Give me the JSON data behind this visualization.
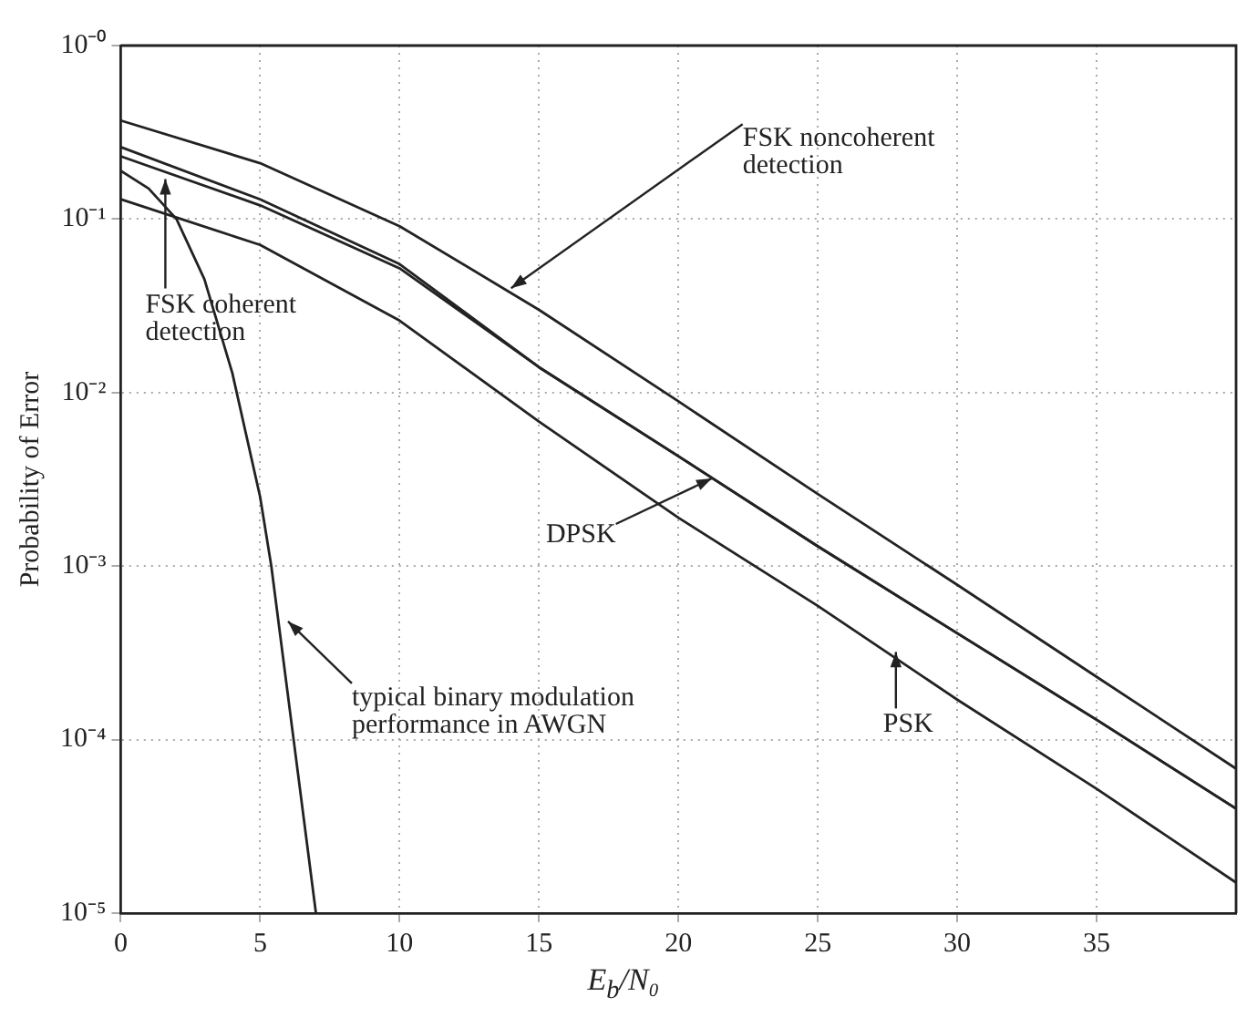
{
  "chart_data": {
    "type": "line",
    "xlabel": "E$_{b}$/N₀",
    "ylabel": "Probability of Error",
    "xlim": [
      0,
      40
    ],
    "xticks": [
      0,
      5,
      10,
      15,
      20,
      25,
      30,
      35
    ],
    "ylim": [
      1e-05,
      1
    ],
    "yticks": [
      {
        "value": 1,
        "label": "10⁻⁰"
      },
      {
        "value": 0.1,
        "label": "10⁻¹"
      },
      {
        "value": 0.01,
        "label": "10⁻²"
      },
      {
        "value": 0.001,
        "label": "10⁻³"
      },
      {
        "value": 0.0001,
        "label": "10⁻⁴"
      },
      {
        "value": 1e-05,
        "label": "10⁻⁵"
      }
    ],
    "log": "y",
    "grid": true,
    "legend": false,
    "marker": "none",
    "line_style": "solid",
    "series": [
      {
        "color": "#222222",
        "x": [
          0,
          5,
          10,
          15,
          20,
          25,
          30,
          35,
          40
        ],
        "values": [
          0.37,
          0.21,
          0.091,
          0.03,
          0.0089,
          0.0026,
          0.00078,
          0.00023,
          6.8e-05
        ]
      },
      {
        "color": "#222222",
        "x": [
          0,
          5,
          10,
          15,
          20,
          25,
          30,
          35,
          40
        ],
        "values": [
          0.26,
          0.13,
          0.055,
          0.014,
          0.0043,
          0.0013,
          0.00041,
          0.00013,
          4e-05
        ]
      },
      {
        "color": "#222222",
        "x": [
          0,
          5,
          10,
          15,
          20,
          25,
          30,
          35,
          40
        ],
        "values": [
          0.23,
          0.12,
          0.052,
          0.014,
          0.0043,
          0.0013,
          0.00041,
          0.00013,
          4e-05
        ]
      },
      {
        "color": "#222222",
        "x": [
          0,
          5,
          10,
          15,
          20,
          25,
          30,
          35,
          40
        ],
        "values": [
          0.13,
          0.071,
          0.026,
          0.0068,
          0.0019,
          0.00059,
          0.00017,
          5.2e-05,
          1.5e-05
        ]
      },
      {
        "color": "#222222",
        "x": [
          0,
          1,
          2,
          3,
          4,
          5,
          5.4,
          6.2,
          7
        ],
        "values": [
          0.19,
          0.15,
          0.1,
          0.045,
          0.013,
          0.0025,
          0.001,
          0.0001,
          1e-05
        ]
      }
    ],
    "annotations": [
      {
        "text": "FSK noncoherent\ndetection",
        "x": 14,
        "y": 0.04
      },
      {
        "text": "FSK coherent\ndetection",
        "x": 1.6,
        "y": 0.17
      },
      {
        "text": "DPSK",
        "x": 21.2,
        "y": 0.0032
      },
      {
        "text": "PSK",
        "x": 27.8,
        "y": 0.00032
      },
      {
        "text": "typical binary modulation\nperformance in AWGN",
        "x": 6,
        "y": 0.00048
      }
    ]
  }
}
